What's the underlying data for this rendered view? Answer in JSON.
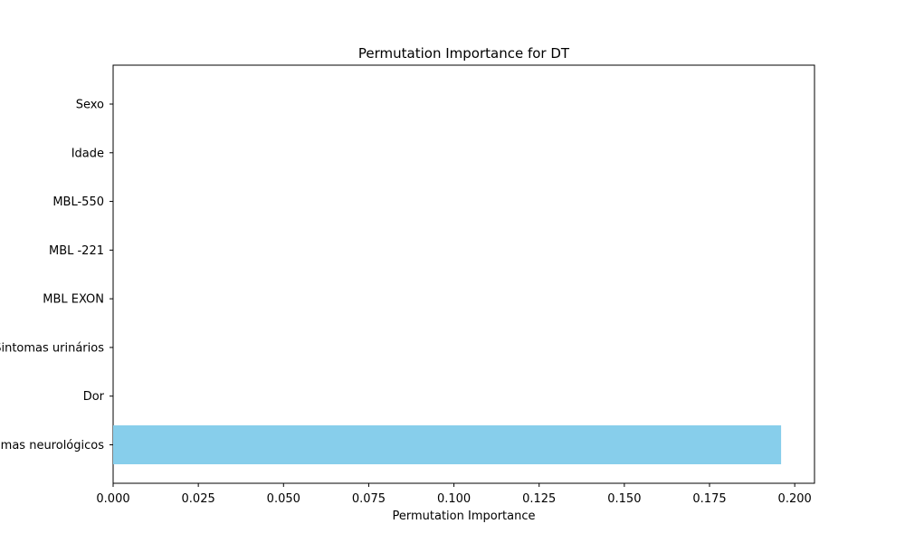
{
  "chart_data": {
    "type": "bar",
    "orientation": "horizontal",
    "title": "Permutation Importance for DT",
    "xlabel": "Permutation Importance",
    "ylabel": "",
    "categories": [
      "Sexo",
      "Idade",
      "MBL-550",
      "MBL -221",
      "MBL EXON",
      "Sintomas urinários",
      "Dor",
      "Sintomas neurológicos"
    ],
    "values": [
      0,
      0,
      0,
      0,
      0,
      0,
      0,
      0.196
    ],
    "xlim": [
      0,
      0.2058
    ],
    "xticks": [
      0.0,
      0.025,
      0.05,
      0.075,
      0.1,
      0.125,
      0.15,
      0.175,
      0.2
    ],
    "xtick_labels": [
      "0.000",
      "0.025",
      "0.050",
      "0.075",
      "0.100",
      "0.125",
      "0.150",
      "0.175",
      "0.200"
    ],
    "bar_color": "#87CEEB",
    "grid": false,
    "legend": "none"
  }
}
